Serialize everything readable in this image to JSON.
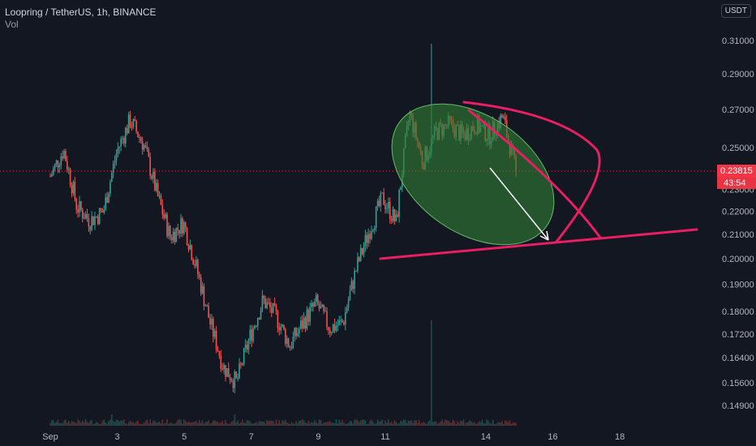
{
  "header": {
    "symbol_line": "Loopring / TetherUS, 1h, BINANCE",
    "volume_label": "Vol"
  },
  "currency_badge": "USDT",
  "current_price": "0.23815",
  "countdown": "43:54",
  "colors": {
    "background": "#131722",
    "up_candle": "#26a69a",
    "down_candle": "#ef5350",
    "drawing_line": "#e91e63",
    "ellipse_fill": "#2e7d32",
    "arrow": "#ffffff",
    "axis_text": "#b2b5be",
    "price_tag": "#f23645"
  },
  "chart_data": {
    "type": "candlestick",
    "title": "Loopring / TetherUS, 1h, BINANCE",
    "y_axis_ticks": [
      "0.31000",
      "0.29000",
      "0.27000",
      "0.25000",
      "0.23000",
      "0.22000",
      "0.21000",
      "0.20000",
      "0.19000",
      "0.18000",
      "0.17200",
      "0.16400",
      "0.15600",
      "0.14900"
    ],
    "y_scale": "log",
    "x_axis_ticks": [
      "Sep",
      "3",
      "5",
      "7",
      "9",
      "11",
      "14",
      "16",
      "18"
    ],
    "last_price": 0.23815,
    "price_path": [
      [
        "Sep 1",
        0.236
      ],
      [
        "Sep 1",
        0.249
      ],
      [
        "Sep 2",
        0.222
      ],
      [
        "Sep 2",
        0.216
      ],
      [
        "Sep 3",
        0.22
      ],
      [
        "Sep 3",
        0.248
      ],
      [
        "Sep 3",
        0.264
      ],
      [
        "Sep 4",
        0.252
      ],
      [
        "Sep 4",
        0.228
      ],
      [
        "Sep 4",
        0.209
      ],
      [
        "Sep 5",
        0.215
      ],
      [
        "Sep 5",
        0.196
      ],
      [
        "Sep 5",
        0.176
      ],
      [
        "Sep 6",
        0.161
      ],
      [
        "Sep 6",
        0.156
      ],
      [
        "Sep 6",
        0.171
      ],
      [
        "Sep 7",
        0.184
      ],
      [
        "Sep 7",
        0.178
      ],
      [
        "Sep 8",
        0.168
      ],
      [
        "Sep 8",
        0.176
      ],
      [
        "Sep 8",
        0.183
      ],
      [
        "Sep 9",
        0.174
      ],
      [
        "Sep 9",
        0.176
      ],
      [
        "Sep 9",
        0.196
      ],
      [
        "Sep 10",
        0.212
      ],
      [
        "Sep 10",
        0.226
      ],
      [
        "Sep 10",
        0.215
      ],
      [
        "Sep 11",
        0.268
      ],
      [
        "Sep 11",
        0.243
      ],
      [
        "Sep 11",
        0.258
      ],
      [
        "Sep 12",
        0.262
      ],
      [
        "Sep 12",
        0.256
      ],
      [
        "Sep 12",
        0.262
      ],
      [
        "Sep 13",
        0.256
      ],
      [
        "Sep 13",
        0.266
      ],
      [
        "Sep 13",
        0.238
      ]
    ],
    "annotations": [
      {
        "kind": "trendline",
        "from": [
          "Sep 10",
          0.2005
        ],
        "to": [
          "Sep 19",
          0.2125
        ]
      },
      {
        "kind": "ellipse",
        "description": "consolidation zone",
        "center": [
          "Sep 12.5",
          0.233
        ]
      },
      {
        "kind": "arrow",
        "from": [
          "Sep 13",
          0.2395
        ],
        "to": [
          "Sep 15",
          0.2062
        ]
      },
      {
        "kind": "curve",
        "from": [
          "Sep 12.5",
          0.274
        ],
        "to": [
          "Sep 16.5",
          0.209
        ]
      }
    ],
    "grid": false,
    "volume_pane": true
  }
}
